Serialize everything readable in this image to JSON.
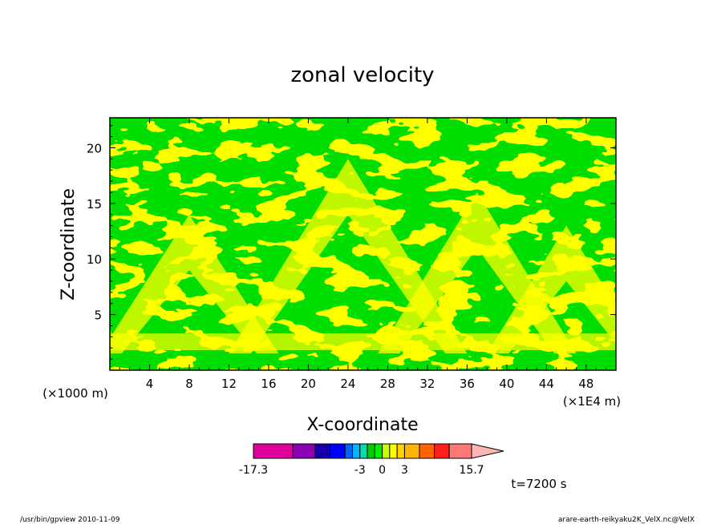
{
  "chart_data": {
    "type": "heatmap",
    "title": "zonal velocity",
    "xlabel": "X-coordinate",
    "ylabel": "Z-coordinate",
    "x_unit_left": "(×1000 m)",
    "x_unit_right": "(×1E4 m)",
    "xlim": [
      0,
      51
    ],
    "ylim": [
      0,
      22.7
    ],
    "x_ticks": [
      4,
      8,
      12,
      16,
      20,
      24,
      28,
      32,
      36,
      40,
      44,
      48
    ],
    "y_ticks": [
      5,
      10,
      15,
      20
    ],
    "field_pattern": "alternating green (slightly negative) and yellow (slightly positive) bands forming chevron/plume structures; dominant values near zero",
    "dominant_colors": [
      "#00dd00",
      "#ffff00"
    ],
    "colorbar": {
      "min_label": "-17.3",
      "max_label": "15.7",
      "tick_labels": [
        "-3",
        "0",
        "3"
      ],
      "segments": [
        {
          "from": -17.3,
          "to": -12,
          "color": "#e0009b"
        },
        {
          "from": -12,
          "to": -9,
          "color": "#8c00b4"
        },
        {
          "from": -9,
          "to": -7,
          "color": "#1400aa"
        },
        {
          "from": -7,
          "to": -5,
          "color": "#0000ff"
        },
        {
          "from": -5,
          "to": -4,
          "color": "#0064ff"
        },
        {
          "from": -4,
          "to": -3,
          "color": "#00b4ff"
        },
        {
          "from": -3,
          "to": -2,
          "color": "#00dcaa"
        },
        {
          "from": -2,
          "to": -1,
          "color": "#00cd00"
        },
        {
          "from": -1,
          "to": 0,
          "color": "#00f000"
        },
        {
          "from": 0,
          "to": 1,
          "color": "#c8ff00"
        },
        {
          "from": 1,
          "to": 2,
          "color": "#ffff00"
        },
        {
          "from": 2,
          "to": 3,
          "color": "#ffd200"
        },
        {
          "from": 3,
          "to": 5,
          "color": "#ffb400"
        },
        {
          "from": 5,
          "to": 7,
          "color": "#ff6400"
        },
        {
          "from": 7,
          "to": 9,
          "color": "#ff1e1e"
        },
        {
          "from": 9,
          "to": 12,
          "color": "#ff7878"
        },
        {
          "from": 12,
          "to": 15.7,
          "color": "#ffb4b4"
        }
      ]
    },
    "time_label": "t=7200 s"
  },
  "footer": {
    "left": "/usr/bin/gpview   2010-11-09",
    "right": "arare-earth-reikyaku2K_VelX.nc@VelX"
  }
}
